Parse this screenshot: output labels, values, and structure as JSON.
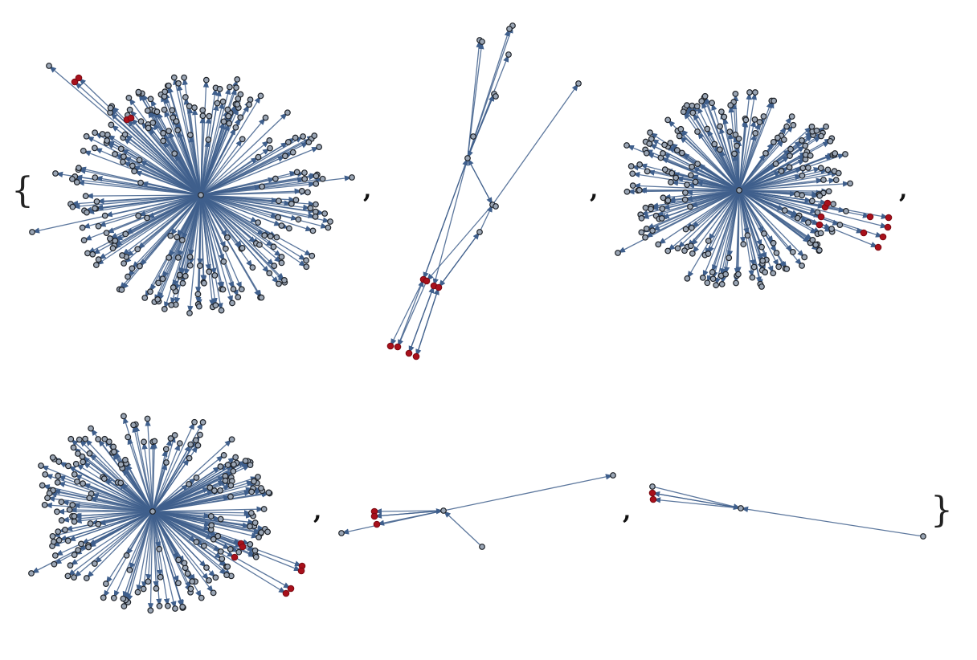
{
  "list": {
    "open": "{",
    "separator": ",",
    "close": "}"
  }
}
